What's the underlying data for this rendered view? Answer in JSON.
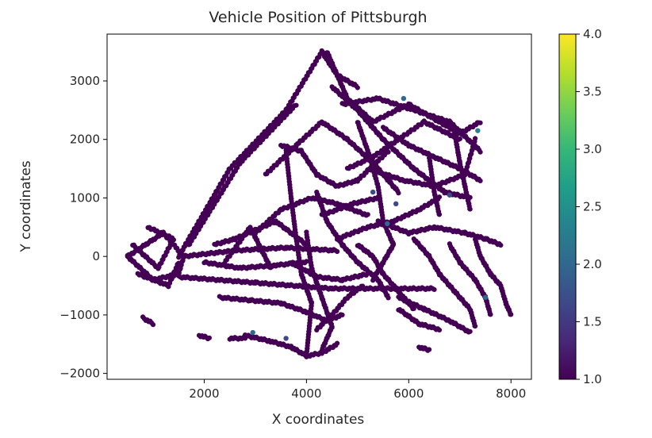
{
  "chart_data": {
    "type": "scatter",
    "title": "Vehicle Position of Pittsburgh",
    "xlabel": "X coordinates",
    "ylabel": "Y coordinates",
    "xlim": [
      100,
      8400
    ],
    "ylim": [
      -2100,
      3800
    ],
    "xticks": [
      2000,
      4000,
      6000,
      8000
    ],
    "yticks": [
      -2000,
      -1000,
      0,
      1000,
      2000,
      3000
    ],
    "xtick_labels": [
      "2000",
      "4000",
      "6000",
      "8000"
    ],
    "ytick_labels": [
      "−2000",
      "−1000",
      "0",
      "1000",
      "2000",
      "3000"
    ],
    "grid": false,
    "colorbar": {
      "colormap": "viridis",
      "range": [
        1.0,
        4.0
      ],
      "ticks": [
        1.0,
        1.5,
        2.0,
        2.5,
        3.0,
        3.5,
        4.0
      ],
      "tick_labels": [
        "1.0",
        "1.5",
        "2.0",
        "2.5",
        "3.0",
        "3.5",
        "4.0"
      ],
      "stops": [
        "#440154",
        "#482878",
        "#3e4989",
        "#31688e",
        "#26828e",
        "#1f9e89",
        "#35b779",
        "#6ece58",
        "#b5de2b",
        "#fde725"
      ]
    },
    "marker_color": "#440154",
    "series": [
      {
        "path": [
          [
            500,
            0
          ],
          [
            1000,
            -400
          ],
          [
            1500,
            -300
          ],
          [
            1600,
            0
          ],
          [
            1200,
            400
          ],
          [
            500,
            0
          ]
        ]
      },
      {
        "path": [
          [
            600,
            200
          ],
          [
            1100,
            -200
          ],
          [
            1400,
            300
          ],
          [
            900,
            500
          ]
        ]
      },
      {
        "path": [
          [
            700,
            -300
          ],
          [
            1300,
            -500
          ],
          [
            1500,
            -100
          ]
        ]
      },
      {
        "path": [
          [
            1500,
            0
          ],
          [
            2500,
            1500
          ],
          [
            3600,
            2500
          ],
          [
            4300,
            3500
          ],
          [
            4600,
            3100
          ],
          [
            5000,
            2900
          ]
        ]
      },
      {
        "path": [
          [
            1700,
            200
          ],
          [
            2700,
            1600
          ],
          [
            3800,
            2600
          ]
        ]
      },
      {
        "path": [
          [
            1500,
            -350
          ],
          [
            3000,
            -450
          ],
          [
            4500,
            -550
          ],
          [
            6500,
            -550
          ]
        ]
      },
      {
        "path": [
          [
            1600,
            0
          ],
          [
            2600,
            100
          ],
          [
            3600,
            150
          ],
          [
            4600,
            100
          ]
        ]
      },
      {
        "path": [
          [
            2200,
            200
          ],
          [
            2600,
            300
          ],
          [
            3400,
            600
          ],
          [
            4000,
            200
          ]
        ]
      },
      {
        "path": [
          [
            2400,
            -100
          ],
          [
            2900,
            500
          ],
          [
            3300,
            -200
          ]
        ]
      },
      {
        "path": [
          [
            3500,
            1900
          ],
          [
            3900,
            1800
          ],
          [
            4200,
            1400
          ],
          [
            4600,
            1200
          ],
          [
            5000,
            1300
          ],
          [
            5600,
            1800
          ]
        ]
      },
      {
        "path": [
          [
            3600,
            1800
          ],
          [
            3700,
            1000
          ],
          [
            3800,
            300
          ],
          [
            3900,
            -300
          ],
          [
            4100,
            -800
          ],
          [
            4000,
            -1700
          ]
        ]
      },
      {
        "path": [
          [
            3000,
            400
          ],
          [
            3500,
            800
          ],
          [
            4100,
            1000
          ],
          [
            4600,
            900
          ],
          [
            5200,
            700
          ]
        ]
      },
      {
        "path": [
          [
            3200,
            1400
          ],
          [
            3800,
            1900
          ],
          [
            4300,
            2300
          ],
          [
            4800,
            2000
          ],
          [
            5300,
            1600
          ],
          [
            5800,
            1100
          ]
        ]
      },
      {
        "path": [
          [
            4400,
            3500
          ],
          [
            4800,
            2700
          ],
          [
            5300,
            2300
          ],
          [
            6000,
            2600
          ],
          [
            7000,
            2100
          ],
          [
            7400,
            2300
          ]
        ]
      },
      {
        "path": [
          [
            4500,
            2900
          ],
          [
            5000,
            2500
          ],
          [
            5500,
            2000
          ],
          [
            6100,
            1500
          ],
          [
            6700,
            1100
          ],
          [
            7200,
            1000
          ]
        ]
      },
      {
        "path": [
          [
            4700,
            2600
          ],
          [
            5400,
            2700
          ],
          [
            6100,
            2500
          ],
          [
            6800,
            2300
          ],
          [
            7400,
            1800
          ]
        ]
      },
      {
        "path": [
          [
            5000,
            2300
          ],
          [
            5200,
            1800
          ],
          [
            5400,
            1200
          ],
          [
            5500,
            600
          ],
          [
            5700,
            200
          ],
          [
            5300,
            -400
          ]
        ]
      },
      {
        "path": [
          [
            5500,
            2200
          ],
          [
            6000,
            1900
          ],
          [
            6500,
            1700
          ],
          [
            7000,
            1500
          ],
          [
            7400,
            1300
          ]
        ]
      },
      {
        "path": [
          [
            5200,
            1500
          ],
          [
            5900,
            1300
          ],
          [
            6500,
            1200
          ],
          [
            7100,
            1400
          ],
          [
            7300,
            2000
          ]
        ]
      },
      {
        "path": [
          [
            4200,
            1100
          ],
          [
            4400,
            600
          ],
          [
            4700,
            200
          ],
          [
            5000,
            -100
          ],
          [
            5400,
            -400
          ],
          [
            5600,
            -700
          ]
        ]
      },
      {
        "path": [
          [
            4300,
            700
          ],
          [
            4900,
            900
          ],
          [
            5400,
            1000
          ]
        ]
      },
      {
        "path": [
          [
            4600,
            300
          ],
          [
            5200,
            500
          ],
          [
            5700,
            600
          ],
          [
            6200,
            800
          ],
          [
            6600,
            1000
          ]
        ]
      },
      {
        "path": [
          [
            5400,
            600
          ],
          [
            6000,
            400
          ],
          [
            6500,
            500
          ],
          [
            7100,
            400
          ],
          [
            7500,
            300
          ],
          [
            7800,
            200
          ]
        ]
      },
      {
        "path": [
          [
            5000,
            200
          ],
          [
            5300,
            0
          ],
          [
            5500,
            -300
          ],
          [
            5800,
            -600
          ],
          [
            6100,
            -900
          ]
        ]
      },
      {
        "path": [
          [
            6100,
            300
          ],
          [
            6400,
            0
          ],
          [
            6600,
            -300
          ],
          [
            6900,
            -600
          ],
          [
            7200,
            -900
          ],
          [
            7300,
            -1200
          ]
        ]
      },
      {
        "path": [
          [
            6800,
            200
          ],
          [
            7000,
            -100
          ],
          [
            7300,
            -400
          ],
          [
            7500,
            -700
          ],
          [
            7600,
            -1000
          ]
        ]
      },
      {
        "path": [
          [
            7300,
            300
          ],
          [
            7400,
            0
          ],
          [
            7600,
            -300
          ],
          [
            7800,
            -500
          ],
          [
            7900,
            -800
          ],
          [
            8000,
            -1000
          ]
        ]
      },
      {
        "path": [
          [
            5800,
            -700
          ],
          [
            6300,
            -900
          ],
          [
            6800,
            -1100
          ],
          [
            7200,
            -1300
          ]
        ]
      },
      {
        "path": [
          [
            5800,
            -900
          ],
          [
            6200,
            -1150
          ],
          [
            6600,
            -1250
          ]
        ]
      },
      {
        "path": [
          [
            6200,
            -1550
          ],
          [
            6400,
            -1600
          ]
        ]
      },
      {
        "path": [
          [
            2300,
            -700
          ],
          [
            2900,
            -750
          ],
          [
            3500,
            -800
          ],
          [
            4000,
            -950
          ],
          [
            4400,
            -1100
          ],
          [
            4700,
            -1000
          ]
        ]
      },
      {
        "path": [
          [
            4200,
            -1250
          ],
          [
            4500,
            -1000
          ],
          [
            4800,
            -700
          ],
          [
            5100,
            -500
          ]
        ]
      },
      {
        "path": [
          [
            2800,
            -1350
          ],
          [
            3300,
            -1450
          ],
          [
            3700,
            -1550
          ],
          [
            4000,
            -1700
          ],
          [
            4300,
            -1650
          ],
          [
            4600,
            -1500
          ]
        ]
      },
      {
        "path": [
          [
            2500,
            -1400
          ],
          [
            2800,
            -1400
          ]
        ]
      },
      {
        "path": [
          [
            1900,
            -1350
          ],
          [
            2100,
            -1400
          ]
        ]
      },
      {
        "path": [
          [
            800,
            -1050
          ],
          [
            1000,
            -1150
          ]
        ]
      },
      {
        "path": [
          [
            2000,
            -100
          ],
          [
            2700,
            -200
          ],
          [
            3400,
            -150
          ],
          [
            4000,
            -100
          ]
        ]
      },
      {
        "path": [
          [
            4800,
            1500
          ],
          [
            5300,
            1700
          ],
          [
            5800,
            2000
          ],
          [
            6300,
            2300
          ],
          [
            7000,
            2000
          ]
        ]
      },
      {
        "path": [
          [
            6400,
            1700
          ],
          [
            6500,
            1100
          ],
          [
            6600,
            700
          ]
        ]
      },
      {
        "path": [
          [
            6900,
            2100
          ],
          [
            7000,
            1600
          ],
          [
            7100,
            1200
          ],
          [
            7200,
            800
          ]
        ]
      },
      {
        "path": [
          [
            4000,
            400
          ],
          [
            4100,
            -200
          ],
          [
            4300,
            -700
          ],
          [
            4500,
            -1200
          ],
          [
            4300,
            -1600
          ]
        ]
      },
      {
        "path": [
          [
            3700,
            -100
          ],
          [
            4200,
            -350
          ],
          [
            4700,
            -400
          ],
          [
            5200,
            -300
          ]
        ]
      }
    ],
    "highlights": [
      {
        "x": 5580,
        "y": 560,
        "v": 2.0
      },
      {
        "x": 5750,
        "y": 900,
        "v": 1.8
      },
      {
        "x": 5900,
        "y": 2700,
        "v": 2.0
      },
      {
        "x": 7500,
        "y": -700,
        "v": 1.9
      },
      {
        "x": 2950,
        "y": -1300,
        "v": 2.1
      },
      {
        "x": 6800,
        "y": 1050,
        "v": 1.7
      },
      {
        "x": 5300,
        "y": 1100,
        "v": 1.8
      },
      {
        "x": 3600,
        "y": -1400,
        "v": 1.6
      },
      {
        "x": 7350,
        "y": 2150,
        "v": 2.3
      }
    ]
  }
}
